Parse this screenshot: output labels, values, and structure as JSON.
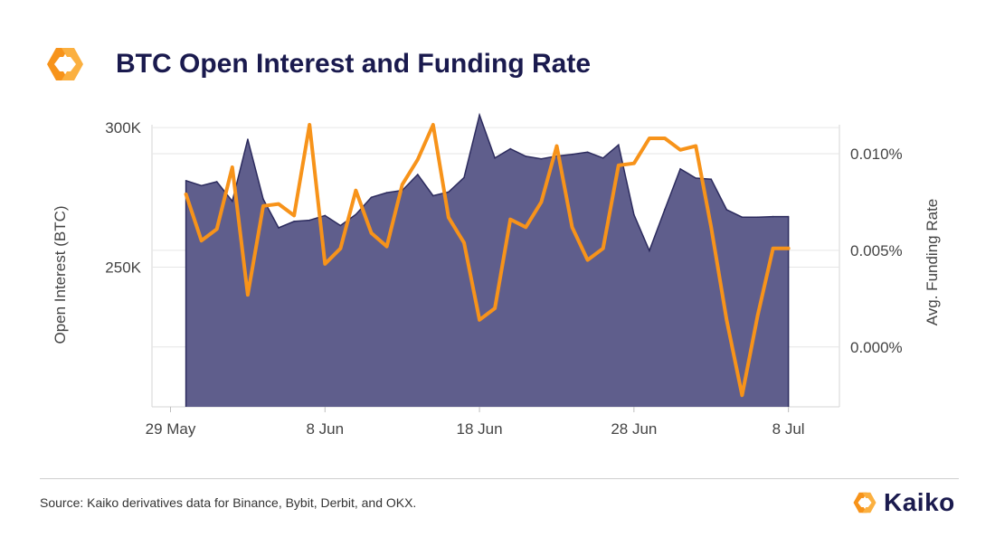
{
  "header": {
    "title": "BTC Open Interest and Funding Rate"
  },
  "footer": {
    "source": "Source: Kaiko derivatives data for Binance, Bybit, Derbit, and OKX.",
    "brand": "Kaiko"
  },
  "colors": {
    "area": "#5f5e8c",
    "area_line": "#2c2b5e",
    "line": "#f7931a",
    "title": "#1a1a4e",
    "grid": "#e6e6e6"
  },
  "icons": {
    "logo": "kaiko-logo-icon",
    "brand": "kaiko-logo-icon"
  },
  "chart_data": {
    "type": "area+line",
    "title": "BTC Open Interest and Funding Rate",
    "xlabel": "",
    "x_start": "2024-05-29",
    "x_days": [
      1.0,
      2.0,
      3.0,
      4.0,
      5.0,
      6.0,
      7.0,
      8.0,
      9.0,
      10.0,
      11.0,
      12.0,
      13.0,
      14.0,
      15.0,
      16.0,
      17.0,
      18.0,
      19.0,
      20.0,
      21.0,
      22.0,
      23.0,
      24.0,
      25.0,
      26.0,
      27.0,
      28.0,
      29.0,
      30.0,
      31.0,
      32.0,
      33.0,
      34.0,
      35.0,
      36.0,
      37.0,
      38.0,
      39.0,
      40.0
    ],
    "x_ticks": [
      {
        "day": 0,
        "label": "29 May"
      },
      {
        "day": 10,
        "label": "8 Jun"
      },
      {
        "day": 20,
        "label": "18 Jun"
      },
      {
        "day": 30,
        "label": "28 Jun"
      },
      {
        "day": 40,
        "label": "8 Jul"
      }
    ],
    "x_range": [
      -1.2,
      43.3
    ],
    "series": [
      {
        "name": "Open Interest (BTC)",
        "axis": "left",
        "type": "area",
        "ylabel": "Open Interest (BTC)",
        "yticks": [
          {
            "value": 250000,
            "label": "250K"
          },
          {
            "value": 300000,
            "label": "300K"
          }
        ],
        "ylim": [
          200000,
          301000
        ],
        "values": [
          281000,
          279200,
          280600,
          273600,
          295800,
          274400,
          264100,
          266400,
          266800,
          268500,
          264900,
          268900,
          275000,
          276700,
          277500,
          283200,
          275600,
          276900,
          282100,
          304500,
          289100,
          292400,
          289700,
          288800,
          289800,
          290400,
          291200,
          289100,
          293800,
          268800,
          255900,
          270700,
          285200,
          281900,
          281500,
          270600,
          267900,
          267900,
          268100,
          268100
        ]
      },
      {
        "name": "Avg. Funding Rate",
        "axis": "right",
        "type": "line",
        "ylabel": "Avg. Funding Rate",
        "yticks": [
          {
            "value": 0.0,
            "label": "0.000%"
          },
          {
            "value": 0.005,
            "label": "0.005%"
          },
          {
            "value": 0.01,
            "label": "0.010%"
          }
        ],
        "ylim": [
          -0.0031,
          0.0115
        ],
        "values": [
          0.0079,
          0.0055,
          0.0061,
          0.0093,
          0.0027,
          0.0073,
          0.0074,
          0.0068,
          0.0115,
          0.0043,
          0.0051,
          0.0081,
          0.0059,
          0.0052,
          0.0084,
          0.0097,
          0.0115,
          0.0067,
          0.0054,
          0.0014,
          0.002,
          0.0066,
          0.0062,
          0.0075,
          0.0104,
          0.0062,
          0.0045,
          0.0051,
          0.0094,
          0.0095,
          0.0108,
          0.0108,
          0.0102,
          0.0104,
          0.0062,
          0.0014,
          -0.0025,
          0.0016,
          0.0051,
          0.0051
        ]
      }
    ]
  }
}
